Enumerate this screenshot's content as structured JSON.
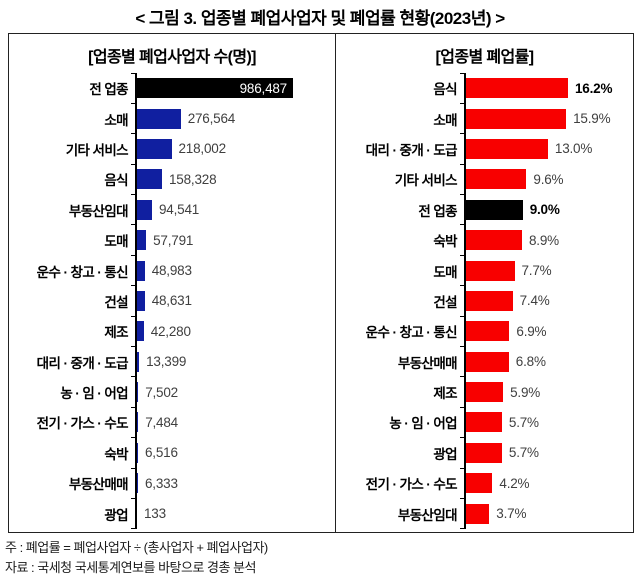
{
  "title": "< 그림 3. 업종별 폐업사업자 및 폐업률 현황(2023년) >",
  "footer": {
    "note": "주 : 폐업률 = 폐업사업자 ÷ (총사업자 + 폐업사업자)",
    "source": "자료 : 국세청 국세통계연보를 바탕으로 경총 분석"
  },
  "colors": {
    "left_bar": "#101fa0",
    "right_bar": "#f80000",
    "highlight_bar": "#000000",
    "value_text": "#3f3f3f",
    "border": "#222222"
  },
  "chart_data": [
    {
      "type": "bar",
      "orientation": "horizontal",
      "title": "[업종별 폐업사업자 수(명)]",
      "categories": [
        "전 업종",
        "소매",
        "기타 서비스",
        "음식",
        "부동산임대",
        "도매",
        "운수 · 창고 · 통신",
        "건설",
        "제조",
        "대리 · 중개 · 도급",
        "농 · 임 · 어업",
        "전기 · 가스 · 수도",
        "숙박",
        "부동산매매",
        "광업"
      ],
      "values": [
        986487,
        276564,
        218002,
        158328,
        94541,
        57791,
        48983,
        48631,
        42280,
        13399,
        7502,
        7484,
        6516,
        6333,
        133
      ],
      "value_labels": [
        "986,487",
        "276,564",
        "218,002",
        "158,328",
        "94,541",
        "57,791",
        "48,983",
        "48,631",
        "42,280",
        "13,399",
        "7,502",
        "7,484",
        "6,516",
        "6,333",
        "133"
      ],
      "bar_color": "#101fa0",
      "highlight_color": "#000000",
      "highlight_index": 0,
      "value_inside_indices": [
        0
      ],
      "bold_value_indices": [],
      "xlabel": "",
      "ylabel": "",
      "grid": false,
      "legend": false
    },
    {
      "type": "bar",
      "orientation": "horizontal",
      "title": "[업종별 폐업률]",
      "categories": [
        "음식",
        "소매",
        "대리 · 중개 · 도급",
        "기타 서비스",
        "전 업종",
        "숙박",
        "도매",
        "건설",
        "운수 · 창고 · 통신",
        "부동산매매",
        "제조",
        "농 · 임 · 어업",
        "광업",
        "전기 · 가스 · 수도",
        "부동산임대"
      ],
      "values": [
        16.2,
        15.9,
        13.0,
        9.6,
        9.0,
        8.9,
        7.7,
        7.4,
        6.9,
        6.8,
        5.9,
        5.7,
        5.7,
        4.2,
        3.7
      ],
      "value_labels": [
        "16.2%",
        "15.9%",
        "13.0%",
        "9.6%",
        "9.0%",
        "8.9%",
        "7.7%",
        "7.4%",
        "6.9%",
        "6.8%",
        "5.9%",
        "5.7%",
        "5.7%",
        "4.2%",
        "3.7%"
      ],
      "bar_color": "#f80000",
      "highlight_color": "#000000",
      "highlight_index": 4,
      "value_inside_indices": [],
      "bold_value_indices": [
        0,
        4
      ],
      "xlabel": "",
      "ylabel": "",
      "grid": false,
      "legend": false
    }
  ]
}
